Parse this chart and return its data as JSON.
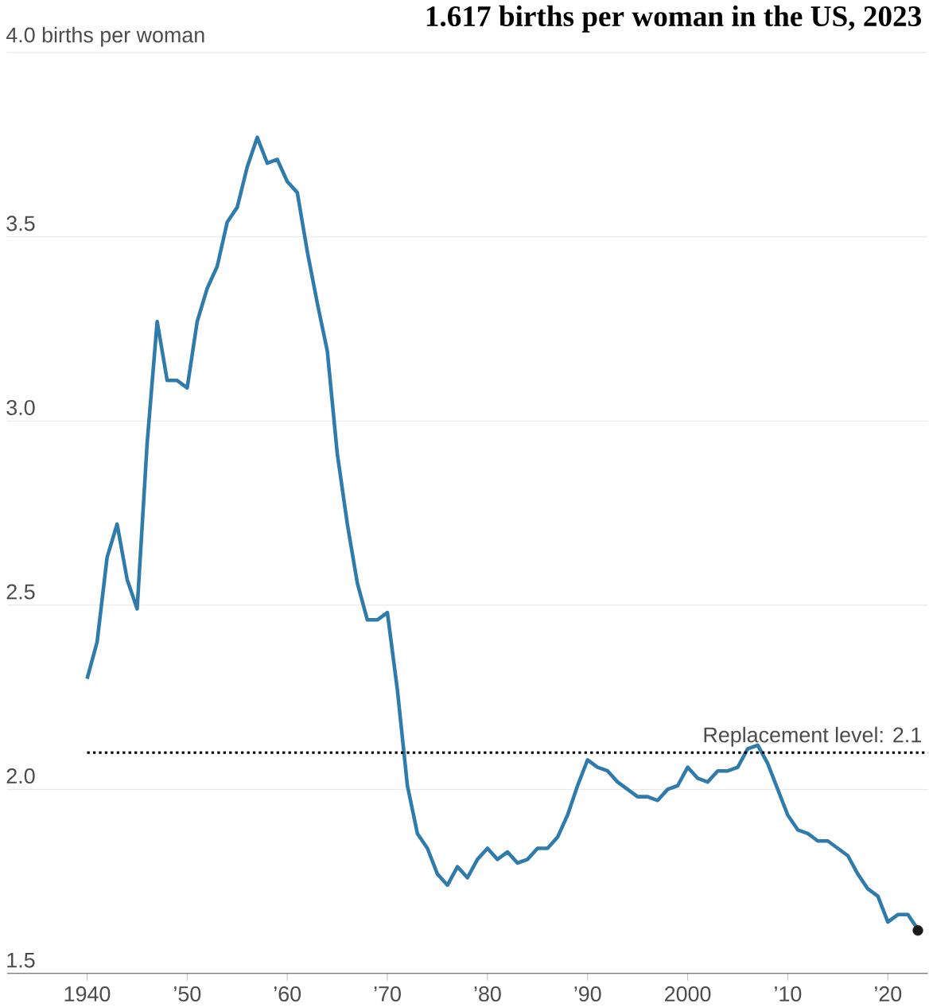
{
  "chart_data": {
    "type": "line",
    "title": "1.617 births per woman in the US, 2023",
    "x": [
      1940,
      1941,
      1942,
      1943,
      1944,
      1945,
      1946,
      1947,
      1948,
      1949,
      1950,
      1951,
      1952,
      1953,
      1954,
      1955,
      1956,
      1957,
      1958,
      1959,
      1960,
      1961,
      1962,
      1963,
      1964,
      1965,
      1966,
      1967,
      1968,
      1969,
      1970,
      1971,
      1972,
      1973,
      1974,
      1975,
      1976,
      1977,
      1978,
      1979,
      1980,
      1981,
      1982,
      1983,
      1984,
      1985,
      1986,
      1987,
      1988,
      1989,
      1990,
      1991,
      1992,
      1993,
      1994,
      1995,
      1996,
      1997,
      1998,
      1999,
      2000,
      2001,
      2002,
      2003,
      2004,
      2005,
      2006,
      2007,
      2008,
      2009,
      2010,
      2011,
      2012,
      2013,
      2014,
      2015,
      2016,
      2017,
      2018,
      2019,
      2020,
      2021,
      2022,
      2023
    ],
    "series": [
      {
        "color": "#2f7bab",
        "values": [
          2.3,
          2.4,
          2.63,
          2.72,
          2.57,
          2.49,
          2.94,
          3.27,
          3.11,
          3.11,
          3.09,
          3.27,
          3.36,
          3.42,
          3.54,
          3.58,
          3.69,
          3.77,
          3.7,
          3.71,
          3.65,
          3.62,
          3.46,
          3.32,
          3.19,
          2.91,
          2.72,
          2.56,
          2.46,
          2.46,
          2.48,
          2.27,
          2.01,
          1.88,
          1.84,
          1.77,
          1.74,
          1.79,
          1.76,
          1.81,
          1.84,
          1.81,
          1.83,
          1.8,
          1.81,
          1.84,
          1.84,
          1.87,
          1.93,
          2.01,
          2.08,
          2.06,
          2.05,
          2.02,
          2.0,
          1.98,
          1.98,
          1.97,
          2.0,
          2.01,
          2.06,
          2.03,
          2.02,
          2.05,
          2.05,
          2.06,
          2.11,
          2.12,
          2.07,
          2.0,
          1.93,
          1.89,
          1.88,
          1.86,
          1.86,
          1.84,
          1.82,
          1.77,
          1.73,
          1.71,
          1.64,
          1.66,
          1.66,
          1.62
        ]
      },
      {
        "type": "scatter",
        "color": "#1a1a1a",
        "x": [
          2023
        ],
        "values": [
          1.617
        ]
      }
    ],
    "xlim": [
      1932,
      2024
    ],
    "ylim": [
      1.5,
      4.0
    ],
    "xticks": [
      1940,
      {
        "value": 1950,
        "label": "’50"
      },
      {
        "value": 1960,
        "label": "’60"
      },
      {
        "value": 1970,
        "label": "’70"
      },
      {
        "value": 1980,
        "label": "’80"
      },
      {
        "value": 1990,
        "label": "’90"
      },
      2000,
      {
        "value": 2010,
        "label": "’10"
      },
      {
        "value": 2020,
        "label": "’20"
      }
    ],
    "yticks": [
      1.5,
      {
        "value": 2,
        "label": "2.0"
      },
      2.5,
      {
        "value": 3,
        "label": "3.0"
      },
      3.5,
      {
        "value": 4,
        "label": "4.0 births per woman"
      }
    ],
    "grid": "y",
    "ref_lines": [
      {
        "axis": "y",
        "value": 2.1,
        "label": "Replacement level: 2.1",
        "color": "#000000",
        "line_style": "dotted"
      }
    ]
  }
}
